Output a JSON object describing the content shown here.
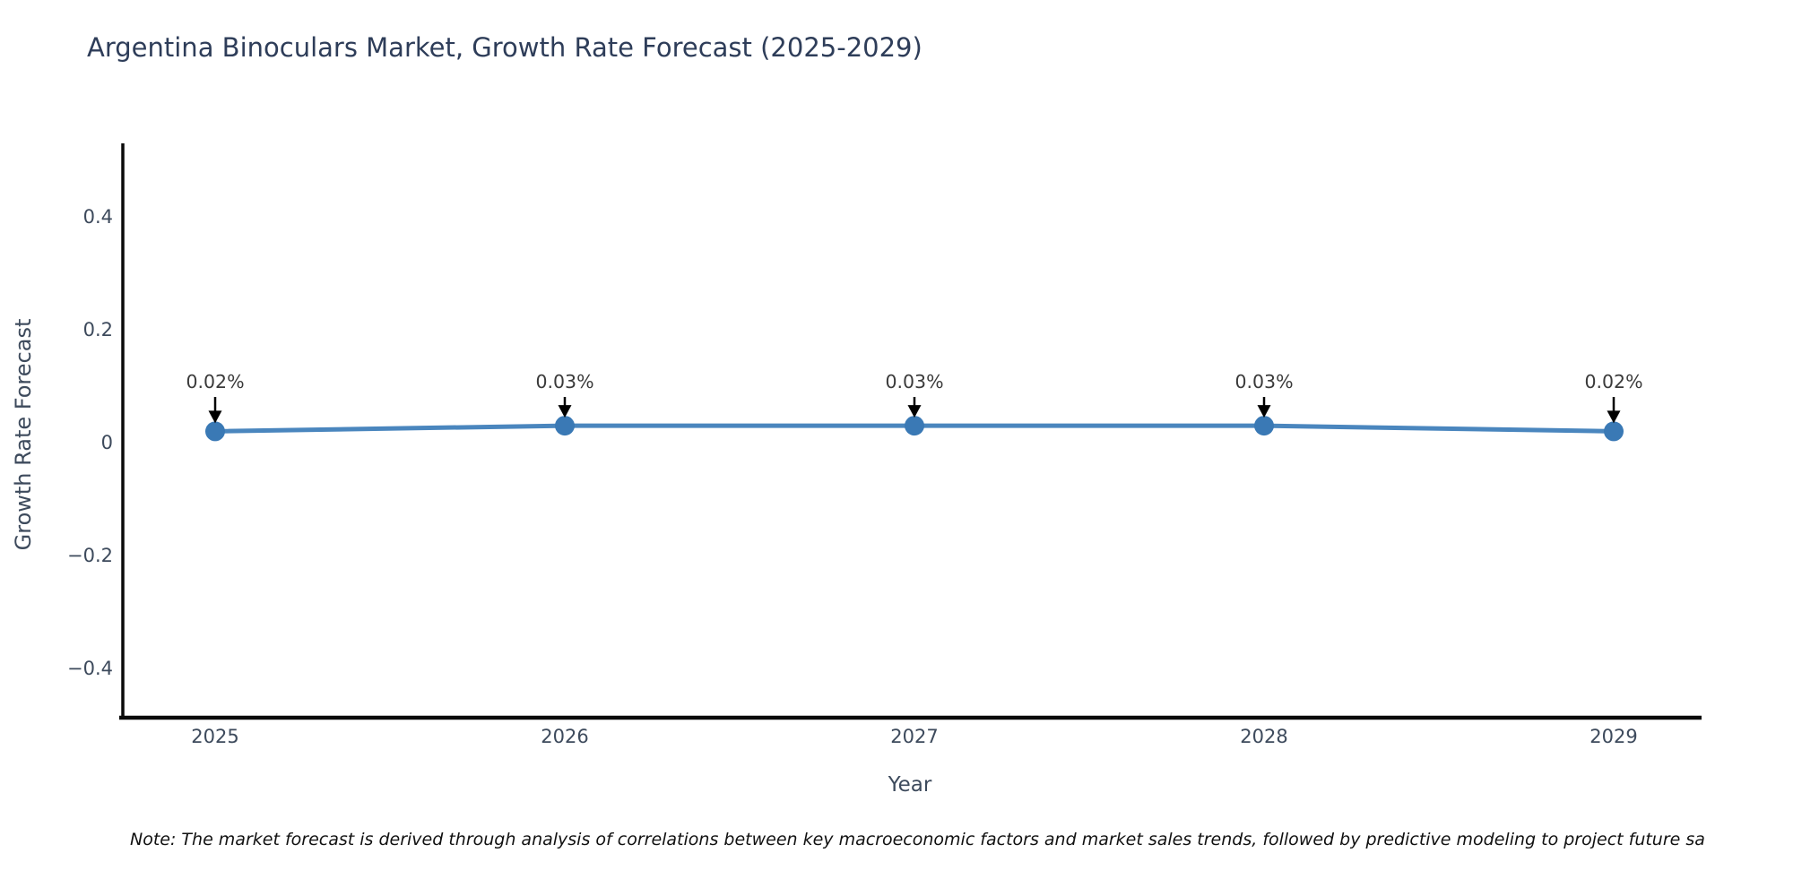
{
  "figure": {
    "title": "Argentina Binoculars Market, Growth Rate Forecast (2025-2029)",
    "xlabel": "Year",
    "ylabel": "Growth Rate Forecast",
    "note": "Note: The market forecast is derived through analysis of correlations between key macroeconomic factors and market sales trends, followed by predictive modeling to project future sa"
  },
  "chart_data": {
    "type": "line",
    "title": "Argentina Binoculars Market, Growth Rate Forecast (2025-2029)",
    "xlabel": "Year",
    "ylabel": "Growth Rate Forecast",
    "x": [
      2025,
      2026,
      2027,
      2028,
      2029
    ],
    "y": [
      0.02,
      0.03,
      0.03,
      0.03,
      0.02
    ],
    "point_labels": [
      "0.02%",
      "0.03%",
      "0.03%",
      "0.03%",
      "0.02%"
    ],
    "xtick_labels": [
      "2025",
      "2026",
      "2027",
      "2028",
      "2029"
    ],
    "ytick_values": [
      0.4,
      0.2,
      0,
      -0.2,
      -0.4
    ],
    "ytick_labels": [
      "0.4",
      "0.2",
      "0",
      "−0.2",
      "−0.4"
    ],
    "ylim": [
      -0.5,
      0.53
    ],
    "grid": false,
    "legend": "none",
    "annotations": "value labels with downward arrows at each point"
  },
  "colors": {
    "line": "#4a86be",
    "marker": "#3a79b5",
    "axis": "#0a0a0a",
    "arrow": "#000000",
    "title_text": "#2e3d59",
    "tick_text": "#3d4a5c"
  }
}
